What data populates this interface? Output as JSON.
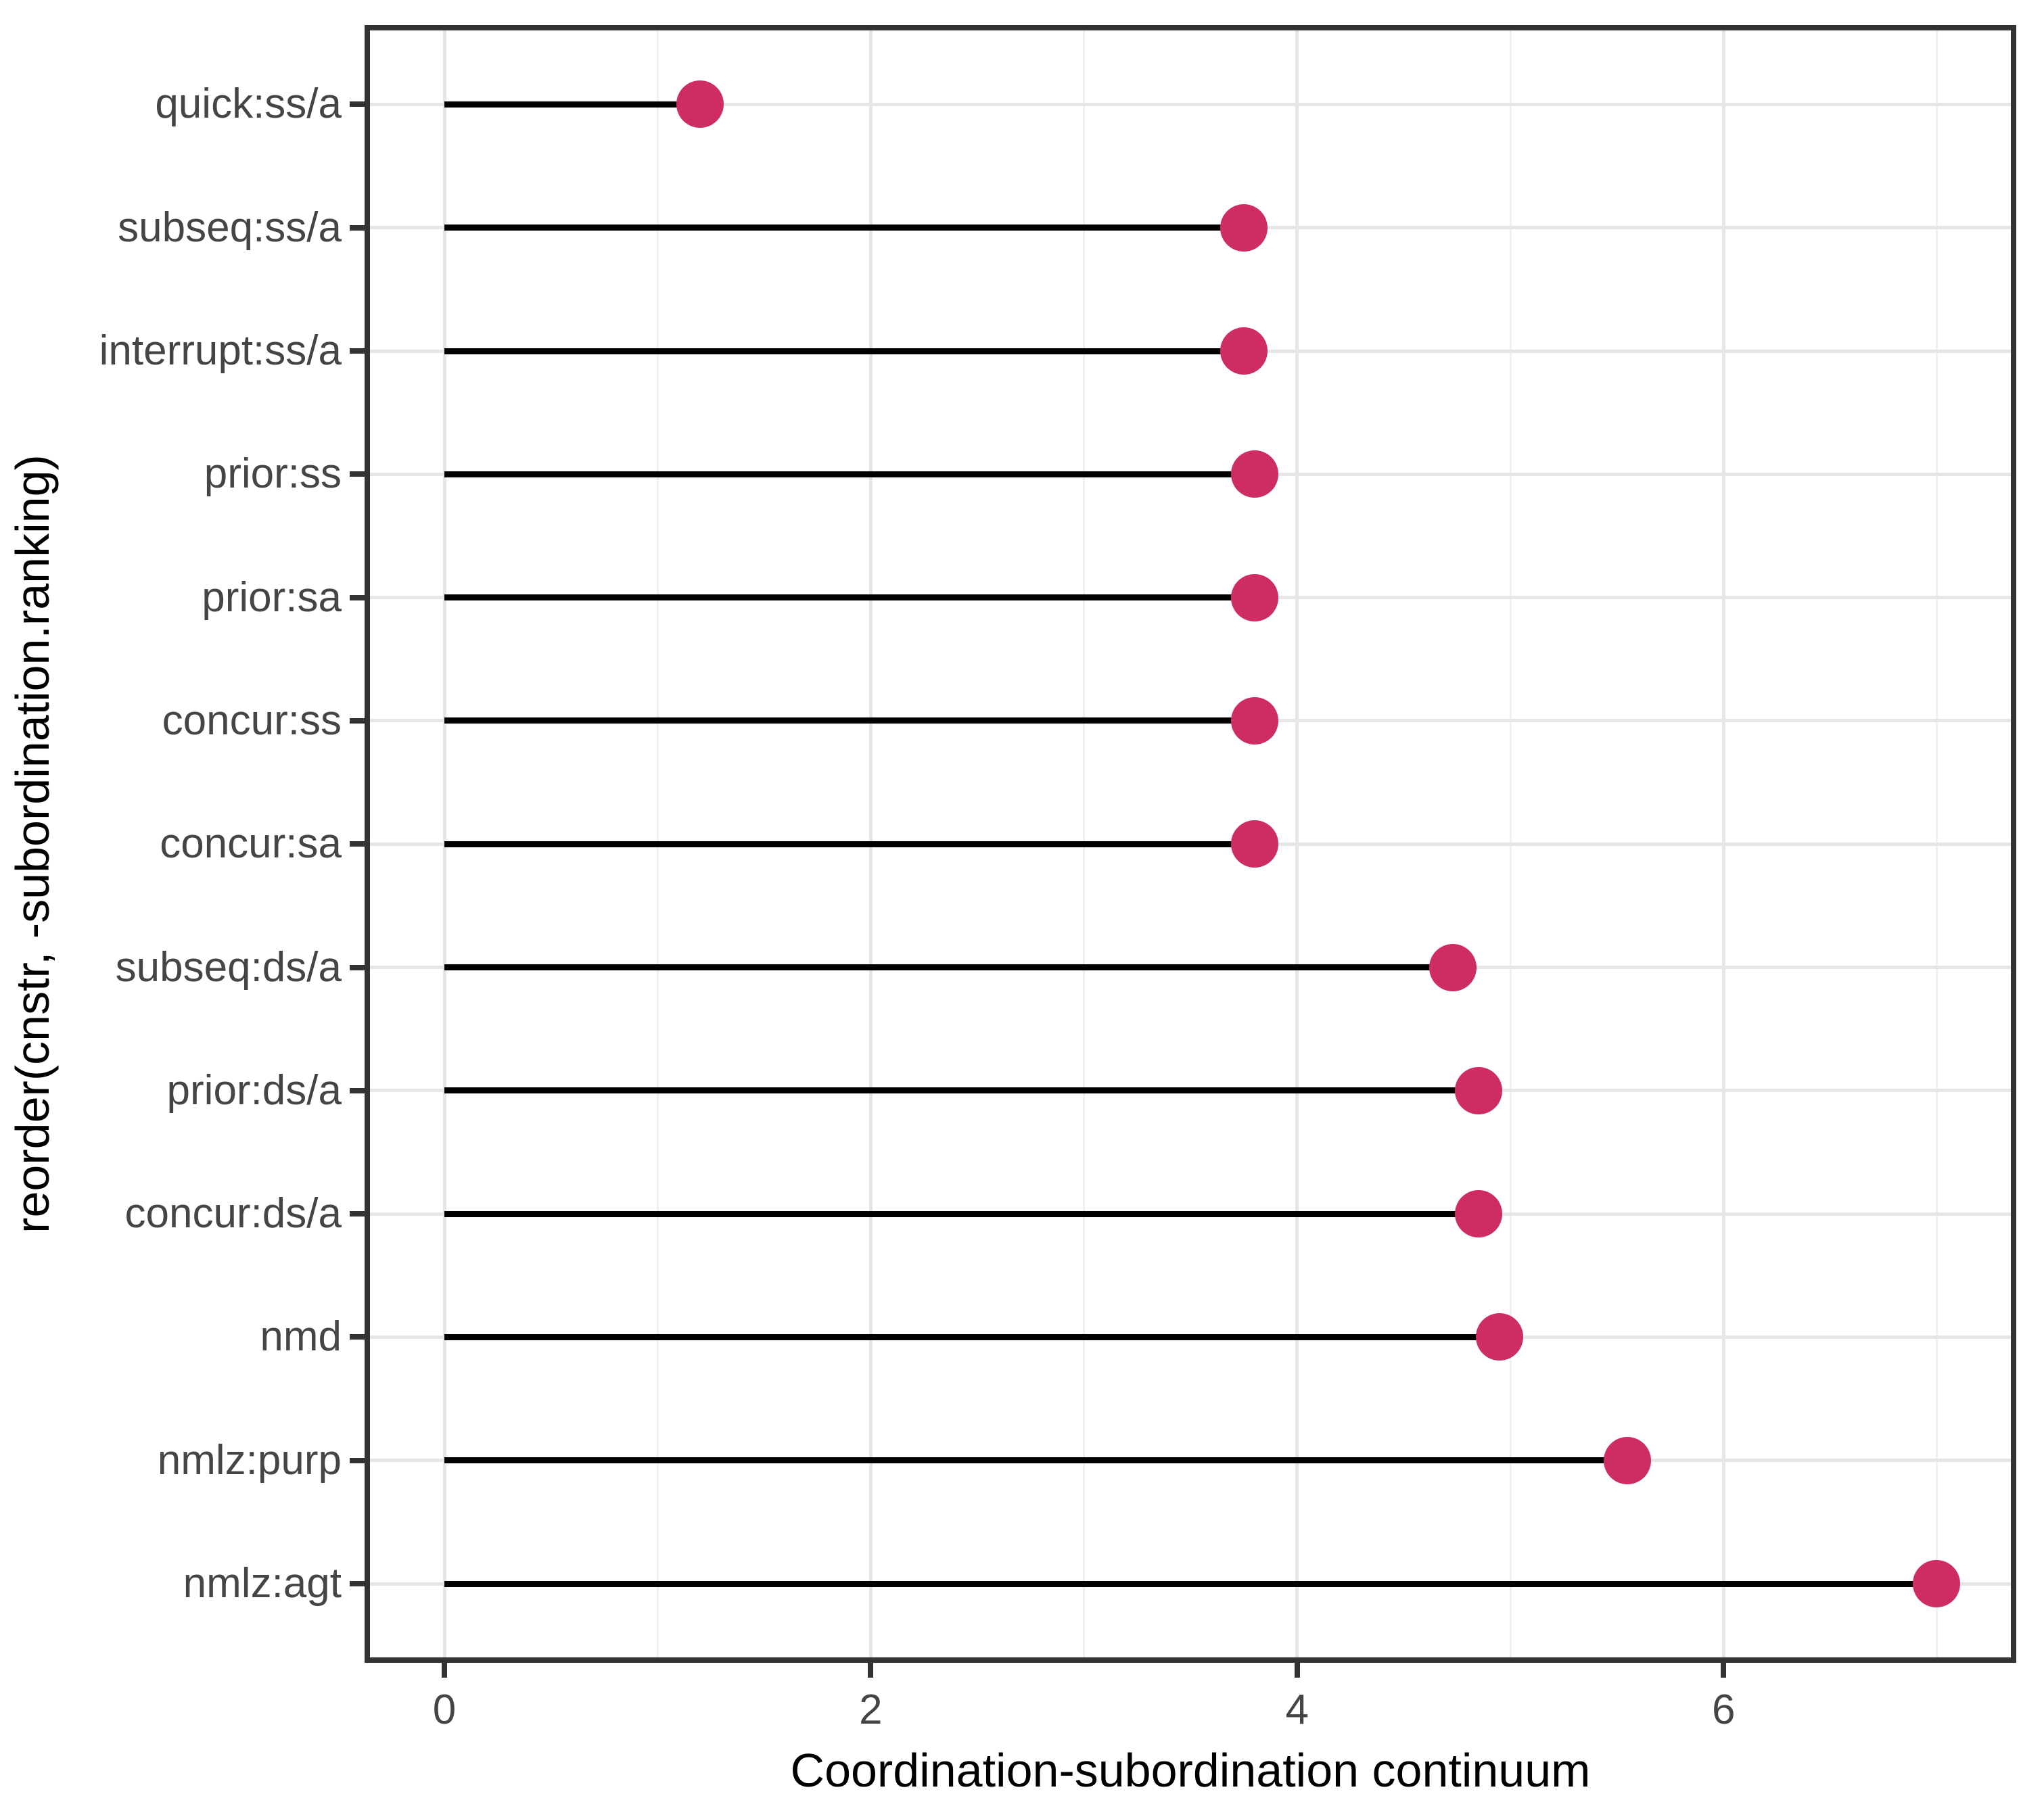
{
  "chart_data": {
    "type": "lollipop",
    "orientation": "horizontal",
    "title": "",
    "xlabel": "Coordination-subordination continuum",
    "ylabel": "reorder(cnstr, -subordination.ranking)",
    "categories": [
      "quick:ss/a",
      "subseq:ss/a",
      "interrupt:ss/a",
      "prior:ss",
      "prior:sa",
      "concur:ss",
      "concur:sa",
      "subseq:ds/a",
      "prior:ds/a",
      "concur:ds/a",
      "nmd",
      "nmlz:purp",
      "nmlz:agt"
    ],
    "values": [
      1.2,
      3.75,
      3.75,
      3.8,
      3.8,
      3.8,
      3.8,
      4.73,
      4.85,
      4.85,
      4.95,
      5.55,
      7.0
    ],
    "stem_start": 0,
    "xlim": [
      -0.35,
      7.35
    ],
    "x_major_ticks": [
      0,
      2,
      4,
      6
    ],
    "x_tick_labels": [
      "0",
      "2",
      "4",
      "6"
    ],
    "x_minor_ticks": [
      1,
      3,
      5,
      7
    ],
    "grid": "vertical major+minor, horizontal major per category",
    "legend": "none",
    "colors": {
      "point": "#CE2D63",
      "stem": "#000000",
      "panel_border": "#333333",
      "grid_major": "#E6E6E6",
      "grid_minor": "#F0F0F0",
      "tick_mark": "#333333",
      "tick_label": "#454545",
      "axis_title": "#000000",
      "background": "#FFFFFF"
    }
  }
}
